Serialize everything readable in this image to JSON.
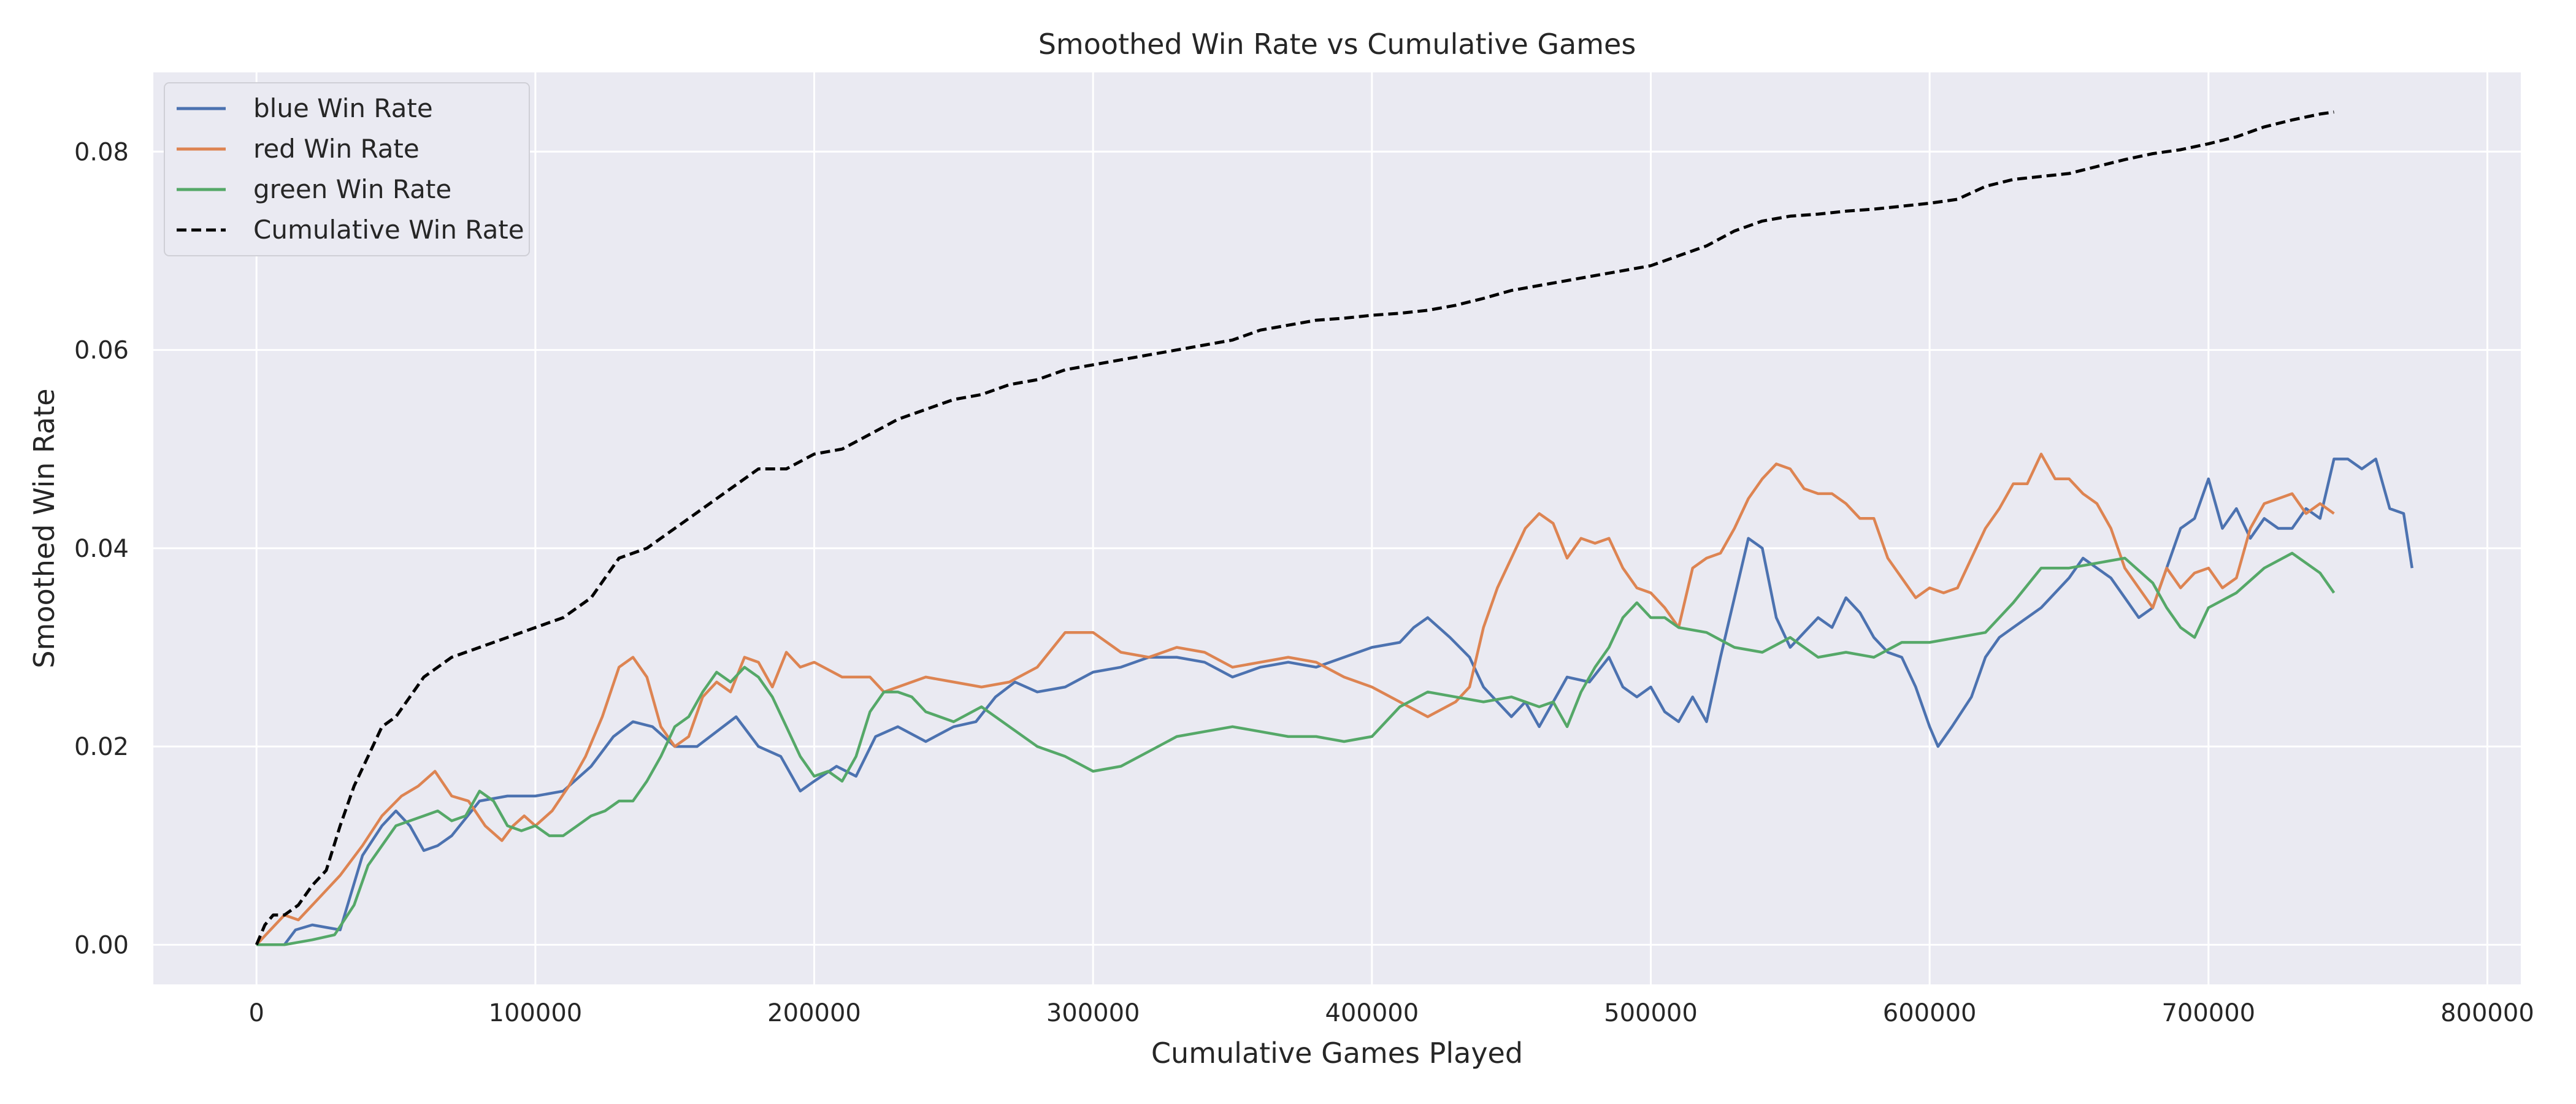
{
  "chart_data": {
    "type": "line",
    "title": "Smoothed Win Rate vs Cumulative Games",
    "xlabel": "Cumulative Games Played",
    "ylabel": "Smoothed Win Rate",
    "xlim": [
      -37000,
      812000
    ],
    "ylim": [
      -0.004,
      0.088
    ],
    "xticks": [
      0,
      100000,
      200000,
      300000,
      400000,
      500000,
      600000,
      700000,
      800000
    ],
    "xtick_labels": [
      "0",
      "100000",
      "200000",
      "300000",
      "400000",
      "500000",
      "600000",
      "700000",
      "800000"
    ],
    "yticks": [
      0.0,
      0.02,
      0.04,
      0.06,
      0.08
    ],
    "ytick_labels": [
      "0.00",
      "0.02",
      "0.04",
      "0.06",
      "0.08"
    ],
    "grid": true,
    "legend_position": "top-left",
    "background": "#eaeaf2",
    "series": [
      {
        "name": "blue Win Rate",
        "color": "#4c72b0",
        "style": "solid",
        "x": [
          0,
          10000,
          14000,
          20000,
          30000,
          38000,
          45000,
          50000,
          55000,
          60000,
          65000,
          70000,
          80000,
          90000,
          100000,
          110000,
          120000,
          128000,
          135000,
          142000,
          150000,
          158000,
          165000,
          172000,
          180000,
          188000,
          195000,
          200000,
          208000,
          215000,
          222000,
          230000,
          240000,
          250000,
          258000,
          265000,
          272000,
          280000,
          290000,
          300000,
          310000,
          320000,
          330000,
          340000,
          350000,
          360000,
          370000,
          380000,
          390000,
          400000,
          410000,
          415000,
          420000,
          428000,
          435000,
          440000,
          445000,
          450000,
          455000,
          460000,
          465000,
          470000,
          478000,
          485000,
          490000,
          495000,
          500000,
          505000,
          510000,
          515000,
          520000,
          525000,
          530000,
          535000,
          540000,
          545000,
          550000,
          555000,
          560000,
          565000,
          570000,
          575000,
          580000,
          585000,
          590000,
          595000,
          600000,
          603000,
          608000,
          615000,
          620000,
          625000,
          630000,
          640000,
          650000,
          655000,
          660000,
          665000,
          670000,
          675000,
          680000,
          685000,
          690000,
          695000,
          700000,
          705000,
          710000,
          715000,
          720000,
          725000,
          730000,
          735000,
          740000,
          745000,
          750000,
          755000,
          760000,
          765000,
          770000,
          773000
        ],
        "y": [
          0,
          0,
          0.0015,
          0.002,
          0.0015,
          0.009,
          0.012,
          0.0135,
          0.012,
          0.0095,
          0.01,
          0.011,
          0.0145,
          0.015,
          0.015,
          0.0155,
          0.018,
          0.021,
          0.0225,
          0.022,
          0.02,
          0.02,
          0.0215,
          0.023,
          0.02,
          0.019,
          0.0155,
          0.0165,
          0.018,
          0.017,
          0.021,
          0.022,
          0.0205,
          0.022,
          0.0225,
          0.025,
          0.0265,
          0.0255,
          0.026,
          0.0275,
          0.028,
          0.029,
          0.029,
          0.0285,
          0.027,
          0.028,
          0.0285,
          0.028,
          0.029,
          0.03,
          0.0305,
          0.032,
          0.033,
          0.031,
          0.029,
          0.026,
          0.0245,
          0.023,
          0.0245,
          0.022,
          0.0245,
          0.027,
          0.0265,
          0.029,
          0.026,
          0.025,
          0.026,
          0.0235,
          0.0225,
          0.025,
          0.0225,
          0.029,
          0.035,
          0.041,
          0.04,
          0.033,
          0.03,
          0.0315,
          0.033,
          0.032,
          0.035,
          0.0335,
          0.031,
          0.0295,
          0.029,
          0.026,
          0.022,
          0.02,
          0.022,
          0.025,
          0.029,
          0.031,
          0.032,
          0.034,
          0.037,
          0.039,
          0.038,
          0.037,
          0.035,
          0.033,
          0.034,
          0.038,
          0.042,
          0.043,
          0.047,
          0.042,
          0.044,
          0.041,
          0.043,
          0.042,
          0.042,
          0.044,
          0.043,
          0.049,
          0.049,
          0.048,
          0.049,
          0.044,
          0.0435,
          0.038
        ]
      },
      {
        "name": "red Win Rate",
        "color": "#dd8452",
        "style": "solid",
        "x": [
          0,
          5000,
          10000,
          15000,
          20000,
          25000,
          30000,
          38000,
          45000,
          52000,
          58000,
          64000,
          70000,
          76000,
          82000,
          88000,
          92000,
          96000,
          100000,
          106000,
          112000,
          118000,
          124000,
          130000,
          135000,
          140000,
          145000,
          150000,
          155000,
          160000,
          165000,
          170000,
          175000,
          180000,
          185000,
          190000,
          195000,
          200000,
          210000,
          220000,
          225000,
          230000,
          240000,
          250000,
          260000,
          270000,
          280000,
          290000,
          300000,
          310000,
          320000,
          330000,
          340000,
          350000,
          360000,
          370000,
          380000,
          390000,
          400000,
          410000,
          420000,
          430000,
          435000,
          440000,
          445000,
          450000,
          455000,
          460000,
          465000,
          470000,
          475000,
          480000,
          485000,
          490000,
          495000,
          500000,
          505000,
          510000,
          515000,
          520000,
          525000,
          530000,
          535000,
          540000,
          545000,
          550000,
          555000,
          560000,
          565000,
          570000,
          575000,
          580000,
          585000,
          590000,
          595000,
          600000,
          605000,
          610000,
          615000,
          620000,
          625000,
          630000,
          635000,
          640000,
          645000,
          650000,
          655000,
          660000,
          665000,
          670000,
          675000,
          680000,
          685000,
          690000,
          695000,
          700000,
          705000,
          710000,
          715000,
          720000,
          725000,
          730000,
          735000,
          740000,
          745000
        ],
        "y": [
          0,
          0.0015,
          0.003,
          0.0025,
          0.004,
          0.0055,
          0.007,
          0.01,
          0.013,
          0.015,
          0.016,
          0.0175,
          0.015,
          0.0145,
          0.012,
          0.0105,
          0.012,
          0.013,
          0.012,
          0.0135,
          0.016,
          0.019,
          0.023,
          0.028,
          0.029,
          0.027,
          0.022,
          0.02,
          0.021,
          0.025,
          0.0265,
          0.0255,
          0.029,
          0.0285,
          0.026,
          0.0295,
          0.028,
          0.0285,
          0.027,
          0.027,
          0.0255,
          0.026,
          0.027,
          0.0265,
          0.026,
          0.0265,
          0.028,
          0.0315,
          0.0315,
          0.0295,
          0.029,
          0.03,
          0.0295,
          0.028,
          0.0285,
          0.029,
          0.0285,
          0.027,
          0.026,
          0.0245,
          0.023,
          0.0245,
          0.026,
          0.032,
          0.036,
          0.039,
          0.042,
          0.0435,
          0.0425,
          0.039,
          0.041,
          0.0405,
          0.041,
          0.038,
          0.036,
          0.0355,
          0.034,
          0.032,
          0.038,
          0.039,
          0.0395,
          0.042,
          0.045,
          0.047,
          0.0485,
          0.048,
          0.046,
          0.0455,
          0.0455,
          0.0445,
          0.043,
          0.043,
          0.039,
          0.037,
          0.035,
          0.036,
          0.0355,
          0.036,
          0.039,
          0.042,
          0.044,
          0.0465,
          0.0465,
          0.0495,
          0.047,
          0.047,
          0.0455,
          0.0445,
          0.042,
          0.038,
          0.036,
          0.034,
          0.038,
          0.036,
          0.0375,
          0.038,
          0.036,
          0.037,
          0.042,
          0.0445,
          0.045,
          0.0455,
          0.0435,
          0.0445,
          0.0435
        ]
      },
      {
        "name": "green Win Rate",
        "color": "#55a868",
        "style": "solid",
        "x": [
          0,
          10000,
          20000,
          28000,
          35000,
          40000,
          45000,
          50000,
          55000,
          60000,
          65000,
          70000,
          75000,
          80000,
          85000,
          90000,
          95000,
          100000,
          105000,
          110000,
          115000,
          120000,
          125000,
          130000,
          135000,
          140000,
          145000,
          150000,
          155000,
          160000,
          165000,
          170000,
          175000,
          180000,
          185000,
          190000,
          195000,
          200000,
          205000,
          210000,
          215000,
          220000,
          225000,
          230000,
          235000,
          240000,
          250000,
          260000,
          270000,
          280000,
          290000,
          300000,
          310000,
          320000,
          330000,
          340000,
          350000,
          360000,
          370000,
          380000,
          390000,
          400000,
          410000,
          420000,
          430000,
          440000,
          450000,
          460000,
          465000,
          470000,
          475000,
          480000,
          485000,
          490000,
          495000,
          500000,
          505000,
          510000,
          520000,
          530000,
          540000,
          550000,
          560000,
          570000,
          580000,
          590000,
          600000,
          610000,
          620000,
          630000,
          640000,
          650000,
          660000,
          670000,
          680000,
          685000,
          690000,
          695000,
          700000,
          710000,
          720000,
          730000,
          740000,
          745000
        ],
        "y": [
          0,
          0,
          0.0005,
          0.001,
          0.004,
          0.008,
          0.01,
          0.012,
          0.0125,
          0.013,
          0.0135,
          0.0125,
          0.013,
          0.0155,
          0.0145,
          0.012,
          0.0115,
          0.012,
          0.011,
          0.011,
          0.012,
          0.013,
          0.0135,
          0.0145,
          0.0145,
          0.0165,
          0.019,
          0.022,
          0.023,
          0.0255,
          0.0275,
          0.0265,
          0.028,
          0.027,
          0.025,
          0.022,
          0.019,
          0.017,
          0.0175,
          0.0165,
          0.019,
          0.0235,
          0.0255,
          0.0255,
          0.025,
          0.0235,
          0.0225,
          0.024,
          0.022,
          0.02,
          0.019,
          0.0175,
          0.018,
          0.0195,
          0.021,
          0.0215,
          0.022,
          0.0215,
          0.021,
          0.021,
          0.0205,
          0.021,
          0.024,
          0.0255,
          0.025,
          0.0245,
          0.025,
          0.024,
          0.0245,
          0.022,
          0.0255,
          0.028,
          0.03,
          0.033,
          0.0345,
          0.033,
          0.033,
          0.032,
          0.0315,
          0.03,
          0.0295,
          0.031,
          0.029,
          0.0295,
          0.029,
          0.0305,
          0.0305,
          0.031,
          0.0315,
          0.0345,
          0.038,
          0.038,
          0.0385,
          0.039,
          0.0365,
          0.034,
          0.032,
          0.031,
          0.034,
          0.0355,
          0.038,
          0.0395,
          0.0375,
          0.0355
        ]
      },
      {
        "name": "Cumulative Win Rate",
        "color": "#000000",
        "style": "dashed",
        "x": [
          0,
          3000,
          6000,
          10000,
          15000,
          20000,
          25000,
          30000,
          35000,
          40000,
          45000,
          50000,
          55000,
          60000,
          70000,
          80000,
          90000,
          100000,
          110000,
          120000,
          130000,
          140000,
          150000,
          160000,
          170000,
          180000,
          190000,
          200000,
          210000,
          220000,
          230000,
          240000,
          250000,
          260000,
          270000,
          280000,
          290000,
          300000,
          310000,
          320000,
          330000,
          340000,
          350000,
          360000,
          370000,
          380000,
          390000,
          400000,
          410000,
          420000,
          430000,
          440000,
          450000,
          460000,
          470000,
          480000,
          490000,
          500000,
          510000,
          520000,
          530000,
          540000,
          550000,
          560000,
          570000,
          580000,
          590000,
          600000,
          610000,
          620000,
          630000,
          640000,
          650000,
          660000,
          670000,
          680000,
          690000,
          700000,
          710000,
          720000,
          730000,
          740000,
          745000
        ],
        "y": [
          0,
          0.002,
          0.003,
          0.003,
          0.004,
          0.006,
          0.0075,
          0.012,
          0.016,
          0.019,
          0.022,
          0.023,
          0.025,
          0.027,
          0.029,
          0.03,
          0.031,
          0.032,
          0.033,
          0.035,
          0.039,
          0.04,
          0.042,
          0.044,
          0.046,
          0.048,
          0.048,
          0.0495,
          0.05,
          0.0515,
          0.053,
          0.054,
          0.055,
          0.0555,
          0.0565,
          0.057,
          0.058,
          0.0585,
          0.059,
          0.0595,
          0.06,
          0.0605,
          0.061,
          0.062,
          0.0625,
          0.063,
          0.0632,
          0.0635,
          0.0637,
          0.064,
          0.0645,
          0.0652,
          0.066,
          0.0665,
          0.067,
          0.0675,
          0.068,
          0.0685,
          0.0695,
          0.0705,
          0.072,
          0.073,
          0.0735,
          0.0737,
          0.074,
          0.0742,
          0.0745,
          0.0748,
          0.0752,
          0.0765,
          0.0772,
          0.0775,
          0.0778,
          0.0785,
          0.0792,
          0.0798,
          0.0802,
          0.0808,
          0.0815,
          0.0825,
          0.0832,
          0.0838,
          0.084
        ]
      }
    ]
  }
}
